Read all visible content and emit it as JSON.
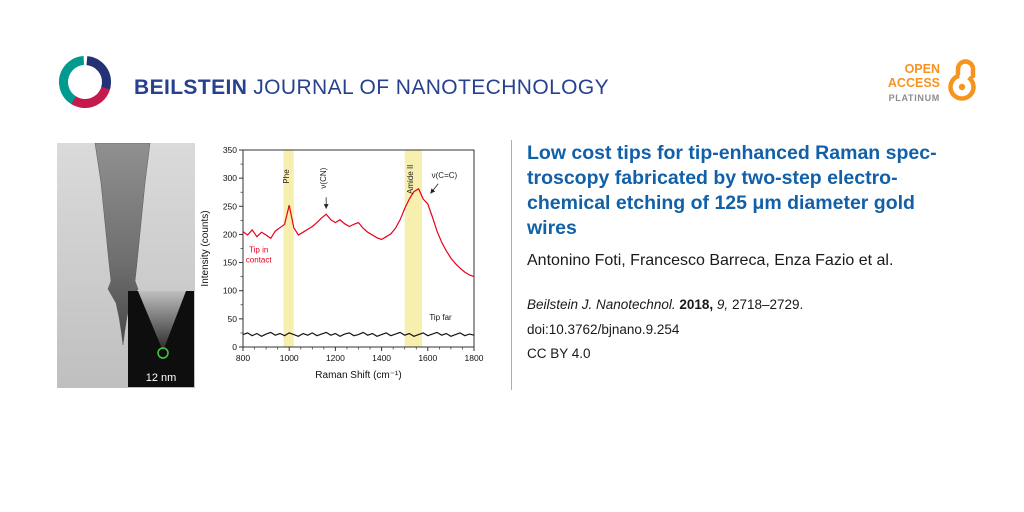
{
  "header": {
    "brand_bold": "BEILSTEIN",
    "brand_rest": "JOURNAL OF NANOTECHNOLOGY",
    "open_access": {
      "line1": "OPEN",
      "line2": "ACCESS",
      "line3": "PLATINUM"
    }
  },
  "colors": {
    "brand_navy": "#27418f",
    "title_blue": "#1160a8",
    "accent_orange": "#f7941e",
    "spectrum_red": "#e8001c",
    "band_yellow": "#f6efad"
  },
  "figure": {
    "sem_scale_label": "12 nm"
  },
  "chart_data": {
    "type": "line",
    "title": "",
    "xlabel": "Raman Shift (cm⁻¹)",
    "ylabel": "Intensity (counts)",
    "xlim": [
      800,
      1800
    ],
    "ylim": [
      0,
      350
    ],
    "xticks": [
      800,
      1000,
      1200,
      1400,
      1600,
      1800
    ],
    "yticks": [
      0,
      50,
      100,
      150,
      200,
      250,
      300,
      350
    ],
    "xminor": 50,
    "yminor": 25,
    "grid": false,
    "legend_position": "none",
    "bands": [
      {
        "label": "Phe",
        "x0": 975,
        "x1": 1020
      },
      {
        "label": "Amide II",
        "x0": 1500,
        "x1": 1575
      }
    ],
    "series": [
      {
        "name": "Tip in contact",
        "color": "#e8001c",
        "x_start": 800,
        "x_step": 20,
        "y": [
          205,
          199,
          208,
          196,
          204,
          199,
          193,
          206,
          212,
          218,
          252,
          212,
          199,
          204,
          209,
          214,
          221,
          229,
          236,
          226,
          221,
          226,
          219,
          214,
          218,
          221,
          211,
          204,
          199,
          194,
          191,
          196,
          201,
          211,
          226,
          246,
          263,
          276,
          281,
          263,
          254,
          231,
          206,
          186,
          171,
          158,
          148,
          140,
          133,
          128,
          125
        ]
      },
      {
        "name": "Tip far",
        "color": "#161616",
        "x_start": 800,
        "x_step": 20,
        "y": [
          22,
          25,
          20,
          24,
          19,
          23,
          26,
          21,
          24,
          20,
          25,
          22,
          19,
          24,
          21,
          25,
          20,
          23,
          26,
          21,
          24,
          19,
          23,
          25,
          20,
          22,
          26,
          21,
          24,
          19,
          22,
          25,
          20,
          23,
          26,
          21,
          24,
          19,
          22,
          25,
          20,
          23,
          26,
          21,
          24,
          19,
          22,
          25,
          20,
          23,
          21
        ]
      }
    ],
    "annotations": [
      {
        "text": "Phe",
        "x": 1000,
        "y": 303,
        "rotate": true,
        "color": "#222"
      },
      {
        "text": "ν(CN)",
        "x": 1160,
        "y": 300,
        "rotate": true,
        "color": "#222",
        "arrow": [
          1160,
          266,
          1160,
          246
        ]
      },
      {
        "text": "Amide II",
        "x": 1537,
        "y": 298,
        "rotate": true,
        "color": "#222"
      },
      {
        "text": "ν(C=C)",
        "x": 1672,
        "y": 300,
        "rotate": false,
        "color": "#222",
        "arrow": [
          1645,
          290,
          1612,
          273
        ]
      },
      {
        "text": "Tip in\ncontact",
        "x": 868,
        "y": 168,
        "rotate": false,
        "color": "#e8001c"
      },
      {
        "text": "Tip far",
        "x": 1655,
        "y": 48,
        "rotate": false,
        "color": "#161616"
      }
    ]
  },
  "article": {
    "title_lines": [
      "Low cost tips for tip-enhanced Raman spec-",
      "troscopy fabricated by two-step electro-",
      "chemical etching of 125 μm diameter gold",
      "wires"
    ],
    "authors": "Antonino Foti, Francesco Barreca, Enza Fazio et al.",
    "citation": {
      "journal": "Beilstein J. Nanotechnol.",
      "year": "2018,",
      "volume": "9,",
      "pages": "2718–2729."
    },
    "doi": "doi:10.3762/bjnano.9.254",
    "license": "CC BY 4.0"
  }
}
